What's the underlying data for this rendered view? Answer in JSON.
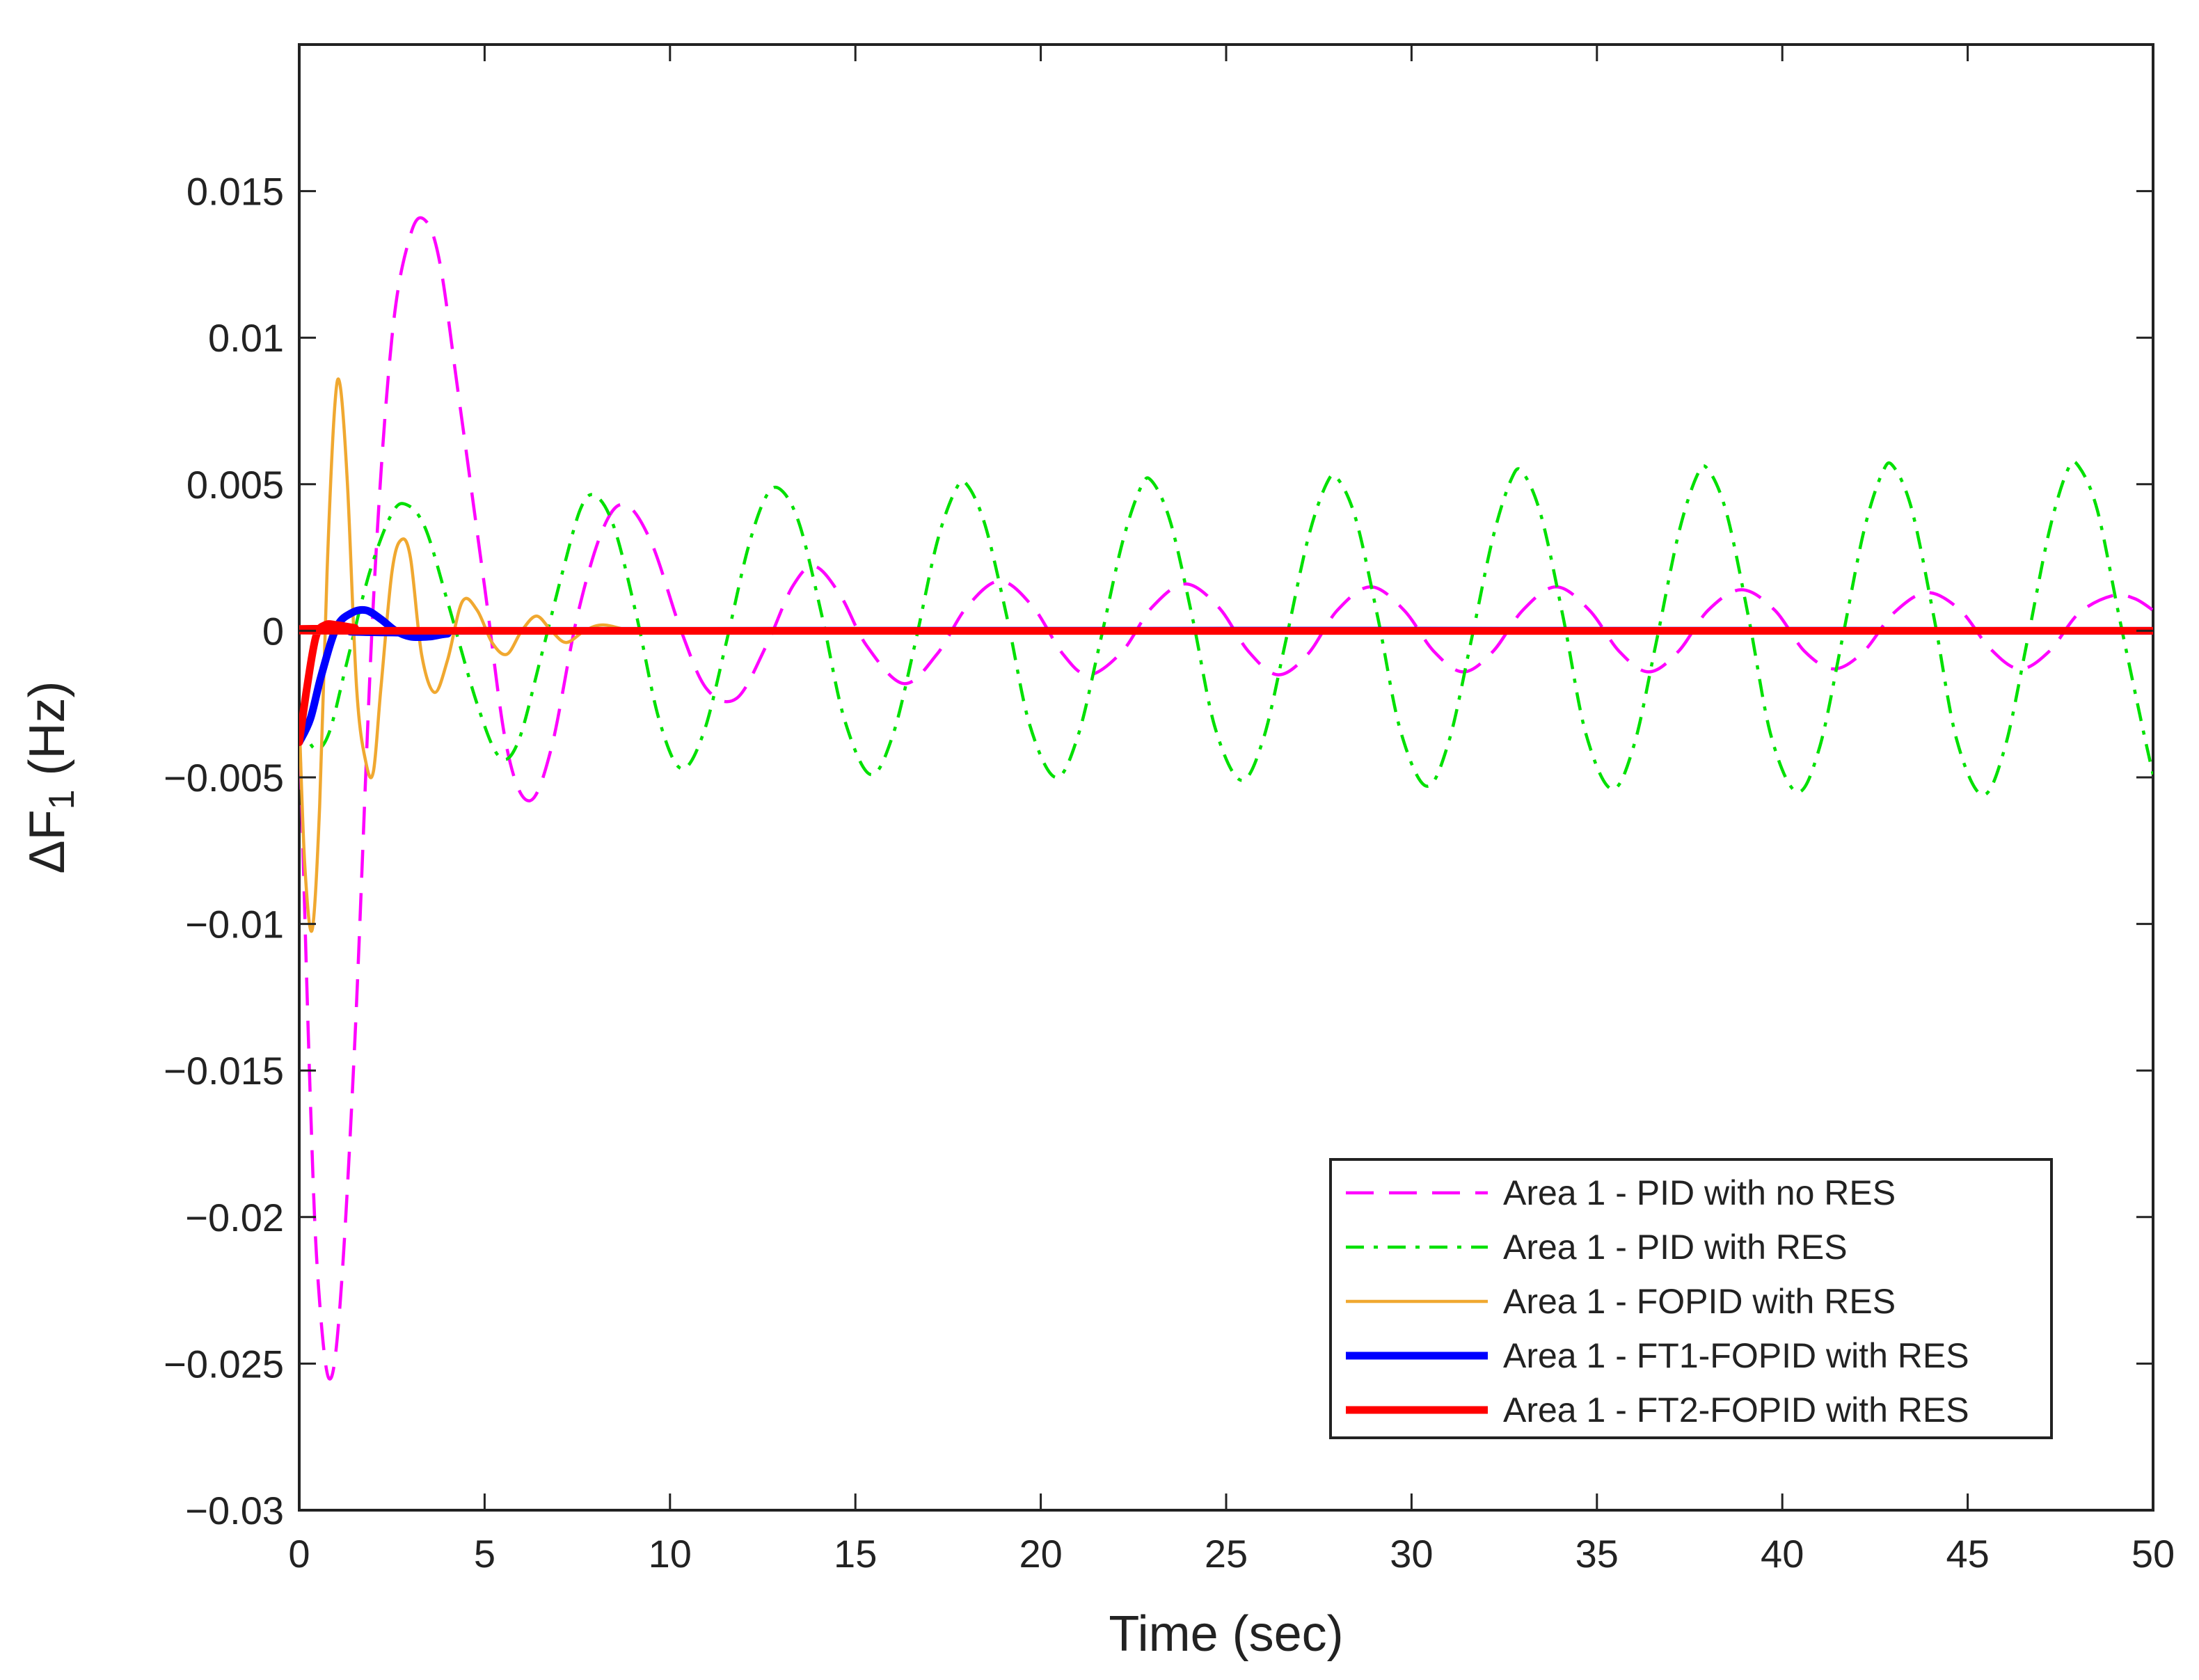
{
  "chart_data": {
    "type": "line",
    "title": "",
    "xlabel": "Time (sec)",
    "ylabel": {
      "prefix": "ΔF",
      "subscript": "1",
      "suffix": " (Hz)"
    },
    "xlim": [
      0,
      50
    ],
    "ylim": [
      -0.03,
      0.02
    ],
    "x_ticks": [
      0,
      5,
      10,
      15,
      20,
      25,
      30,
      35,
      40,
      45,
      50
    ],
    "x_tick_labels": [
      "0",
      "5",
      "10",
      "15",
      "20",
      "25",
      "30",
      "35",
      "40",
      "45",
      "50"
    ],
    "y_ticks": [
      -0.03,
      -0.025,
      -0.02,
      -0.015,
      -0.01,
      -0.005,
      0,
      0.005,
      0.01,
      0.015
    ],
    "y_tick_labels": [
      "−0.03",
      "−0.025",
      "−0.02",
      "−0.015",
      "−0.01",
      "−0.005",
      "0",
      "0.005",
      "0.01",
      "0.015"
    ],
    "grid": false,
    "legend_position": "bottom-right",
    "series": [
      {
        "name": "Area 1 - PID with no RES",
        "color": "#ff00ff",
        "style": "dashed",
        "width": "thin",
        "points": [
          [
            0,
            -0.003
          ],
          [
            0.3,
            -0.016
          ],
          [
            0.5,
            -0.022
          ],
          [
            0.8,
            -0.0255
          ],
          [
            1.1,
            -0.023
          ],
          [
            1.5,
            -0.014
          ],
          [
            2.0,
            0.001
          ],
          [
            2.5,
            0.01
          ],
          [
            3.0,
            0.0135
          ],
          [
            3.4,
            0.014
          ],
          [
            3.8,
            0.0125
          ],
          [
            4.3,
            0.008
          ],
          [
            5.0,
            0.0015
          ],
          [
            5.6,
            -0.004
          ],
          [
            6.2,
            -0.0058
          ],
          [
            6.8,
            -0.004
          ],
          [
            7.5,
            0.0005
          ],
          [
            8.2,
            0.0035
          ],
          [
            8.8,
            0.0043
          ],
          [
            9.5,
            0.003
          ],
          [
            10.3,
            0.0
          ],
          [
            11.0,
            -0.002
          ],
          [
            11.8,
            -0.0023
          ],
          [
            12.6,
            -0.0005
          ],
          [
            13.3,
            0.0015
          ],
          [
            13.9,
            0.0022
          ],
          [
            14.6,
            0.0012
          ],
          [
            15.3,
            -0.0005
          ],
          [
            16.3,
            -0.0018
          ],
          [
            17.2,
            -0.0008
          ],
          [
            18.0,
            0.0008
          ],
          [
            18.9,
            0.0017
          ],
          [
            19.8,
            0.0008
          ],
          [
            20.6,
            -0.0008
          ],
          [
            21.3,
            -0.0015
          ],
          [
            22.2,
            -0.0007
          ],
          [
            23.0,
            0.0008
          ],
          [
            23.9,
            0.0016
          ],
          [
            24.8,
            0.0008
          ],
          [
            25.6,
            -0.0007
          ],
          [
            26.4,
            -0.0015
          ],
          [
            27.2,
            -0.0008
          ],
          [
            28.0,
            0.0007
          ],
          [
            28.9,
            0.0015
          ],
          [
            29.8,
            0.0007
          ],
          [
            30.6,
            -0.0007
          ],
          [
            31.4,
            -0.0014
          ],
          [
            32.2,
            -0.0007
          ],
          [
            33.0,
            0.0007
          ],
          [
            33.9,
            0.0015
          ],
          [
            34.8,
            0.0007
          ],
          [
            35.6,
            -0.0007
          ],
          [
            36.4,
            -0.0014
          ],
          [
            37.2,
            -0.0007
          ],
          [
            38.0,
            0.0007
          ],
          [
            38.9,
            0.0014
          ],
          [
            39.8,
            0.0007
          ],
          [
            40.6,
            -0.0007
          ],
          [
            41.4,
            -0.0013
          ],
          [
            42.2,
            -0.0007
          ],
          [
            43.0,
            0.0006
          ],
          [
            43.9,
            0.0013
          ],
          [
            44.8,
            0.0007
          ],
          [
            45.6,
            -0.0006
          ],
          [
            46.4,
            -0.0013
          ],
          [
            47.2,
            -0.0007
          ],
          [
            48.0,
            0.0006
          ],
          [
            48.9,
            0.0012
          ],
          [
            49.5,
            0.0011
          ],
          [
            50.0,
            0.0007
          ]
        ]
      },
      {
        "name": "Area 1 - PID with RES",
        "color": "#00e000",
        "style": "dashdot",
        "width": "thin",
        "points": [
          [
            0,
            -0.003
          ],
          [
            0.4,
            -0.004
          ],
          [
            0.8,
            -0.0035
          ],
          [
            1.3,
            -0.001
          ],
          [
            1.9,
            0.002
          ],
          [
            2.5,
            0.004
          ],
          [
            2.9,
            0.0043
          ],
          [
            3.4,
            0.0035
          ],
          [
            4.0,
            0.001
          ],
          [
            4.8,
            -0.0025
          ],
          [
            5.4,
            -0.0043
          ],
          [
            5.9,
            -0.0038
          ],
          [
            6.5,
            -0.001
          ],
          [
            7.1,
            0.002
          ],
          [
            7.6,
            0.0042
          ],
          [
            8.0,
            0.0046
          ],
          [
            8.5,
            0.0035
          ],
          [
            9.1,
            0.0005
          ],
          [
            9.7,
            -0.003
          ],
          [
            10.3,
            -0.0047
          ],
          [
            10.9,
            -0.0035
          ],
          [
            11.5,
            -0.0005
          ],
          [
            12.1,
            0.0028
          ],
          [
            12.6,
            0.0046
          ],
          [
            13.0,
            0.0048
          ],
          [
            13.5,
            0.0036
          ],
          [
            14.1,
            0.0005
          ],
          [
            14.7,
            -0.003
          ],
          [
            15.4,
            -0.0049
          ],
          [
            16.0,
            -0.0036
          ],
          [
            16.6,
            -0.0005
          ],
          [
            17.2,
            0.003
          ],
          [
            17.7,
            0.0048
          ],
          [
            18.0,
            0.005
          ],
          [
            18.5,
            0.0036
          ],
          [
            19.1,
            0.0004
          ],
          [
            19.7,
            -0.0032
          ],
          [
            20.4,
            -0.005
          ],
          [
            21.0,
            -0.0036
          ],
          [
            21.6,
            -0.0004
          ],
          [
            22.2,
            0.003
          ],
          [
            22.7,
            0.0049
          ],
          [
            23.0,
            0.0051
          ],
          [
            23.5,
            0.0037
          ],
          [
            24.1,
            0.0004
          ],
          [
            24.7,
            -0.0033
          ],
          [
            25.4,
            -0.0051
          ],
          [
            26.0,
            -0.0037
          ],
          [
            26.6,
            -0.0004
          ],
          [
            27.2,
            0.0031
          ],
          [
            27.7,
            0.005
          ],
          [
            28.0,
            0.0052
          ],
          [
            28.5,
            0.0038
          ],
          [
            29.1,
            0.0004
          ],
          [
            29.7,
            -0.0034
          ],
          [
            30.4,
            -0.0053
          ],
          [
            31.0,
            -0.0038
          ],
          [
            31.6,
            -0.0004
          ],
          [
            32.2,
            0.0032
          ],
          [
            32.7,
            0.0052
          ],
          [
            33.0,
            0.0054
          ],
          [
            33.5,
            0.0039
          ],
          [
            34.1,
            0.0004
          ],
          [
            34.7,
            -0.0035
          ],
          [
            35.4,
            -0.0054
          ],
          [
            36.0,
            -0.0039
          ],
          [
            36.6,
            -0.0004
          ],
          [
            37.2,
            0.0033
          ],
          [
            37.7,
            0.0053
          ],
          [
            38.0,
            0.0055
          ],
          [
            38.5,
            0.004
          ],
          [
            39.1,
            0.0004
          ],
          [
            39.7,
            -0.0036
          ],
          [
            40.4,
            -0.0055
          ],
          [
            41.0,
            -0.004
          ],
          [
            41.6,
            -0.0004
          ],
          [
            42.2,
            0.0034
          ],
          [
            42.7,
            0.0054
          ],
          [
            43.0,
            0.0056
          ],
          [
            43.5,
            0.0041
          ],
          [
            44.1,
            0.0004
          ],
          [
            44.7,
            -0.0037
          ],
          [
            45.4,
            -0.0056
          ],
          [
            46.0,
            -0.004
          ],
          [
            46.6,
            -0.0004
          ],
          [
            47.2,
            0.0034
          ],
          [
            47.7,
            0.0055
          ],
          [
            48.0,
            0.0056
          ],
          [
            48.5,
            0.0041
          ],
          [
            49.1,
            0.0004
          ],
          [
            49.7,
            -0.0032
          ],
          [
            50.0,
            -0.0049
          ]
        ]
      },
      {
        "name": "Area 1 - FOPID with RES",
        "color": "#f0a830",
        "style": "solid",
        "width": "thin",
        "points": [
          [
            0,
            -0.003
          ],
          [
            0.15,
            -0.008
          ],
          [
            0.35,
            -0.0102
          ],
          [
            0.55,
            -0.006
          ],
          [
            0.75,
            0.002
          ],
          [
            0.95,
            0.0075
          ],
          [
            1.1,
            0.0084
          ],
          [
            1.3,
            0.005
          ],
          [
            1.55,
            -0.002
          ],
          [
            1.8,
            -0.0045
          ],
          [
            2.0,
            -0.0048
          ],
          [
            2.2,
            -0.002
          ],
          [
            2.5,
            0.002
          ],
          [
            2.75,
            0.0031
          ],
          [
            3.0,
            0.0025
          ],
          [
            3.3,
            -0.0008
          ],
          [
            3.65,
            -0.0021
          ],
          [
            4.0,
            -0.001
          ],
          [
            4.4,
            0.001
          ],
          [
            4.8,
            0.0007
          ],
          [
            5.2,
            -0.0004
          ],
          [
            5.6,
            -0.0008
          ],
          [
            6.0,
            0.0
          ],
          [
            6.4,
            0.0005
          ],
          [
            6.8,
            0.0
          ],
          [
            7.2,
            -0.0004
          ],
          [
            7.7,
            0.0
          ],
          [
            8.2,
            0.0002
          ],
          [
            9.0,
            0.0
          ],
          [
            10.0,
            0.0
          ],
          [
            50.0,
            0.0
          ]
        ]
      },
      {
        "name": "Area 1 - FT1-FOPID with RES",
        "color": "#0000ff",
        "style": "solid",
        "width": "thick",
        "points": [
          [
            0,
            -0.0038
          ],
          [
            0.3,
            -0.003
          ],
          [
            0.6,
            -0.0015
          ],
          [
            1.0,
            0.0001
          ],
          [
            1.4,
            0.0006
          ],
          [
            1.8,
            0.0007
          ],
          [
            2.2,
            0.0004
          ],
          [
            2.6,
            0.0
          ],
          [
            3.0,
            -0.0002
          ],
          [
            3.5,
            -0.0002
          ],
          [
            4.0,
            -0.0001
          ],
          [
            5.0,
            0.0
          ],
          [
            50.0,
            0.0
          ]
        ]
      },
      {
        "name": "Area 1 - FT2-FOPID with RES",
        "color": "#ff0000",
        "style": "solid",
        "width": "thick",
        "points": [
          [
            0,
            -0.0038
          ],
          [
            0.2,
            -0.002
          ],
          [
            0.45,
            -0.0002
          ],
          [
            0.7,
            0.0002
          ],
          [
            1.0,
            0.0002
          ],
          [
            1.5,
            0.0001
          ],
          [
            2.2,
            0.0
          ],
          [
            50.0,
            0.0
          ]
        ]
      }
    ]
  }
}
